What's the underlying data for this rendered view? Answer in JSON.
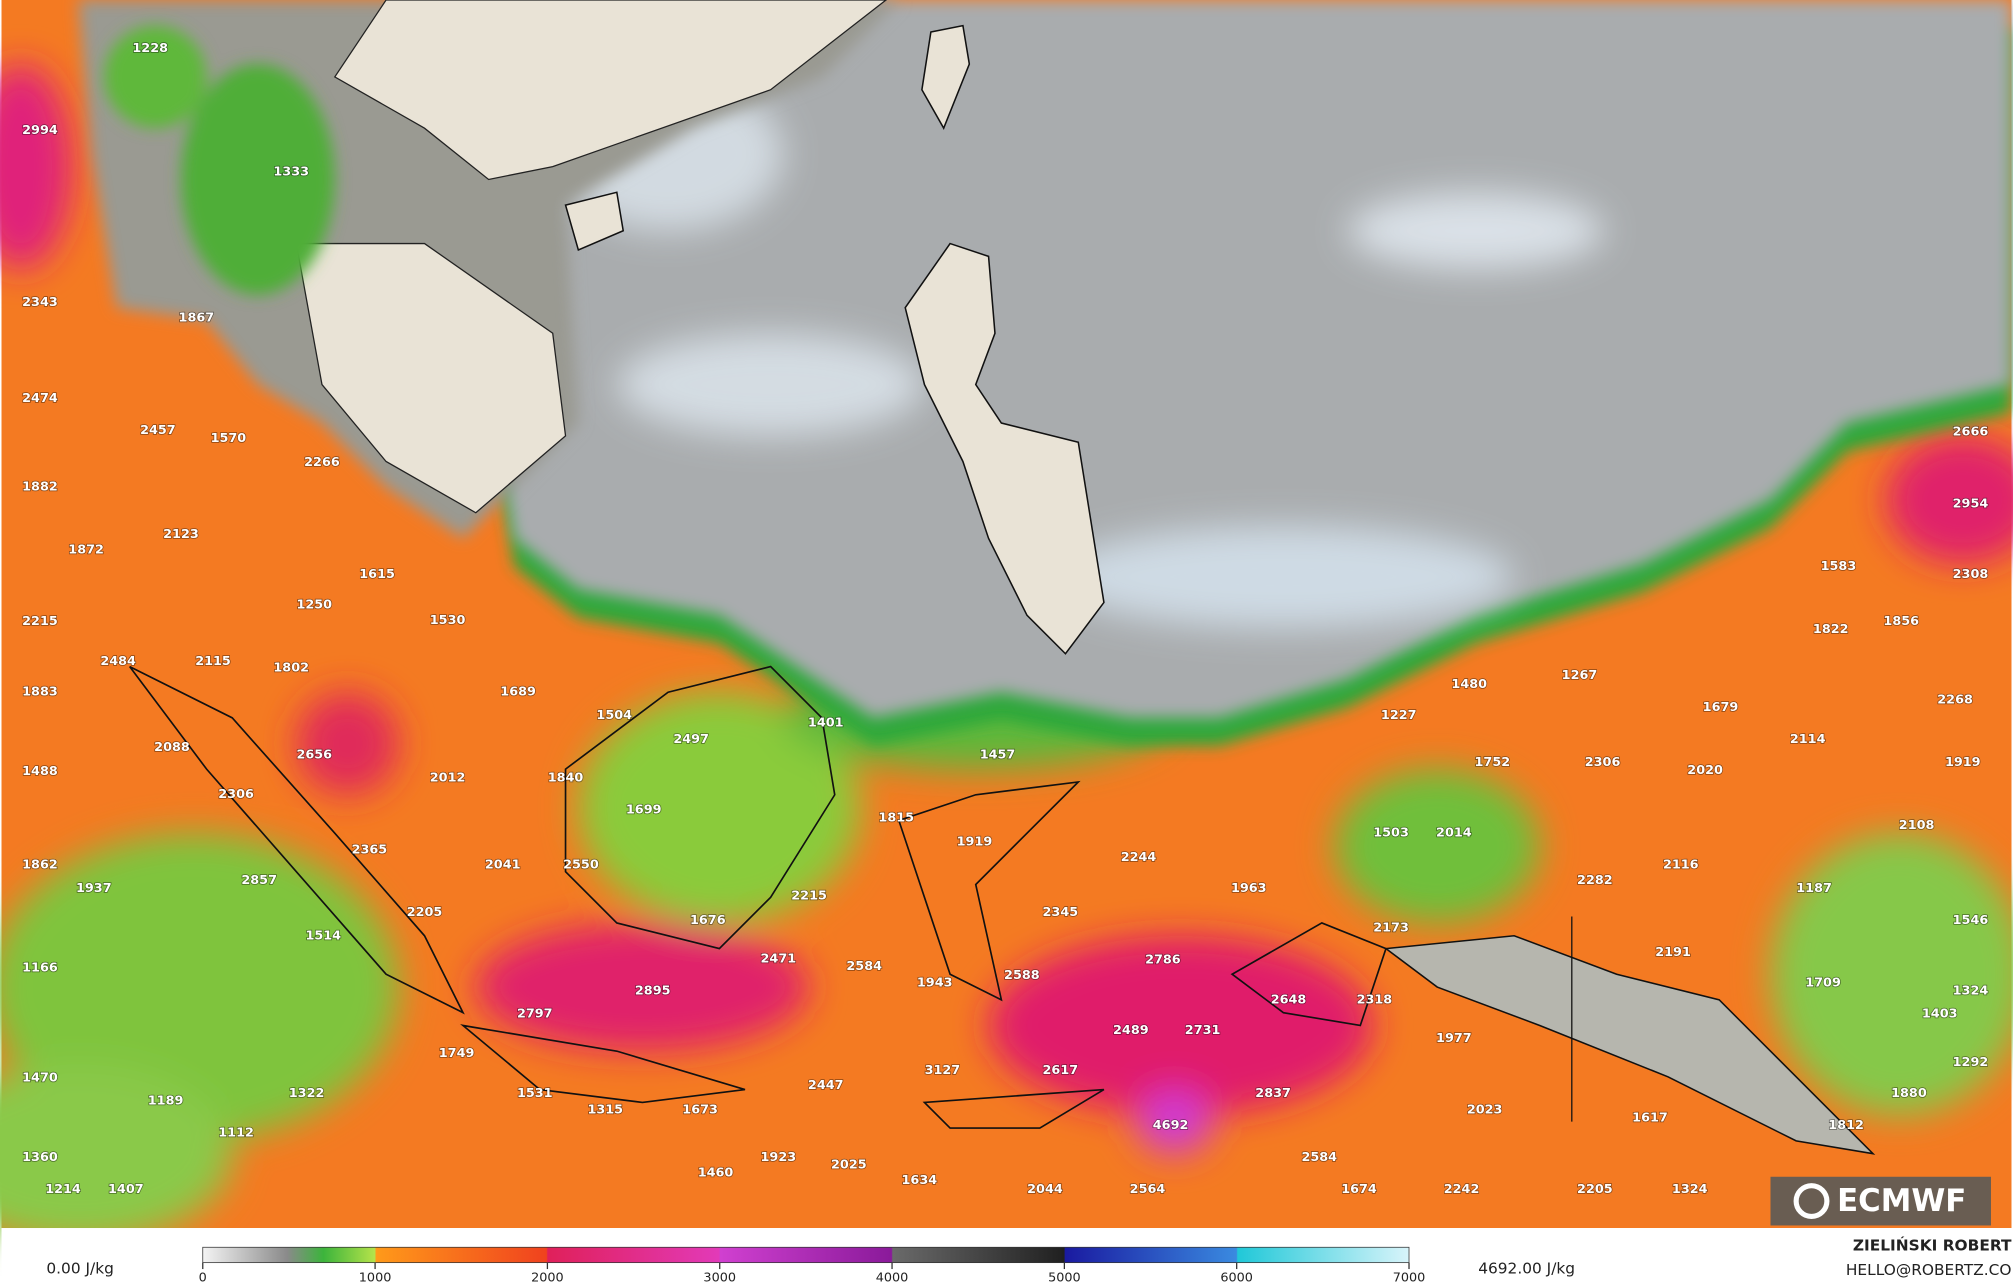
{
  "map": {
    "labels": [
      1228,
      2994,
      1333,
      2343,
      1867,
      2474,
      2457,
      1570,
      2266,
      1882,
      2123,
      1872,
      1615,
      1250,
      2215,
      1530,
      2484,
      2115,
      1802,
      1883,
      1689,
      1504,
      1401,
      2497,
      2088,
      2656,
      1457,
      1488,
      2012,
      1840,
      2306,
      1699,
      1815,
      1919,
      2365,
      2244,
      1862,
      2041,
      2550,
      2857,
      1937,
      1963,
      2215,
      2205,
      1676,
      2345,
      2173,
      1514,
      2786,
      2471,
      2584,
      1166,
      2588,
      1943,
      2895,
      2648,
      2318,
      2797,
      2489,
      2731,
      1977,
      1749,
      3127,
      2617,
      1470,
      2447,
      1531,
      1322,
      2837,
      1189,
      1315,
      1673,
      2023,
      4692,
      1112,
      1923,
      2584,
      1360,
      2025,
      1460,
      1634,
      1214,
      1407,
      2044,
      2564,
      1674,
      2242,
      2205,
      1324,
      2666,
      2954,
      1583,
      2308,
      1822,
      1856,
      1480,
      1267,
      1227,
      1679,
      2268,
      2114,
      1752,
      2306,
      2020,
      1919,
      2108,
      1503,
      2014,
      2116,
      2282,
      1187,
      1546,
      2191,
      1709,
      1324,
      1403,
      1292,
      1880,
      1617,
      1812
    ],
    "logo": "ECMWF"
  },
  "colorbar": {
    "min_label": "0.00 J/kg",
    "max_label": "4692.00 J/kg",
    "range": [
      0,
      7000
    ],
    "ticks": [
      0,
      1000,
      2000,
      3000,
      4000,
      5000,
      6000,
      7000
    ]
  },
  "credit": {
    "author": "ZIELIŃSKI ROBERT",
    "email": "HELLO@ROBERTZ.CO"
  }
}
